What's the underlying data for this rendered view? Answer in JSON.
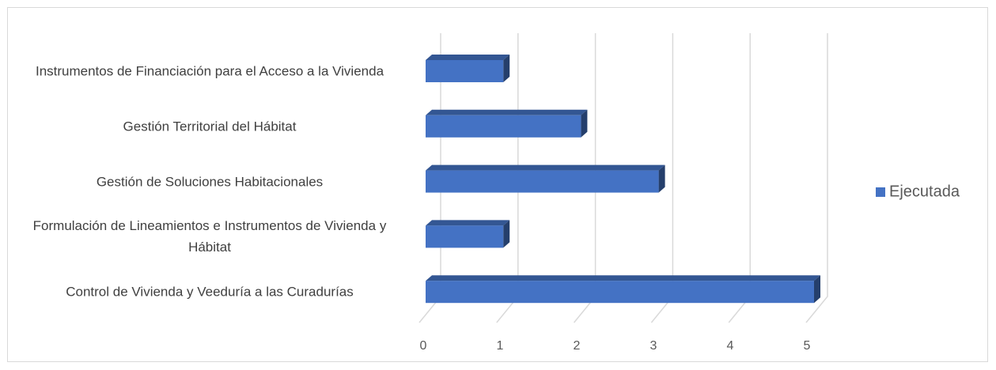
{
  "chart_data": {
    "type": "bar",
    "orientation": "horizontal",
    "three_d": true,
    "categories": [
      "Instrumentos de Financiación para el Acceso a la Vivienda",
      "Gestión Territorial del Hábitat",
      "Gestión de Soluciones Habitacionales",
      "Formulación de Lineamientos e Instrumentos de Vivienda y Hábitat",
      "Control de Vivienda y Veeduría a las Curadurías"
    ],
    "series": [
      {
        "name": "Ejecutada",
        "color": "#4472c4",
        "values": [
          1,
          2,
          3,
          1,
          5
        ]
      }
    ],
    "xlim": [
      0,
      5
    ],
    "xticks": [
      0,
      1,
      2,
      3,
      4,
      5
    ],
    "grid": true,
    "legend": "right"
  }
}
